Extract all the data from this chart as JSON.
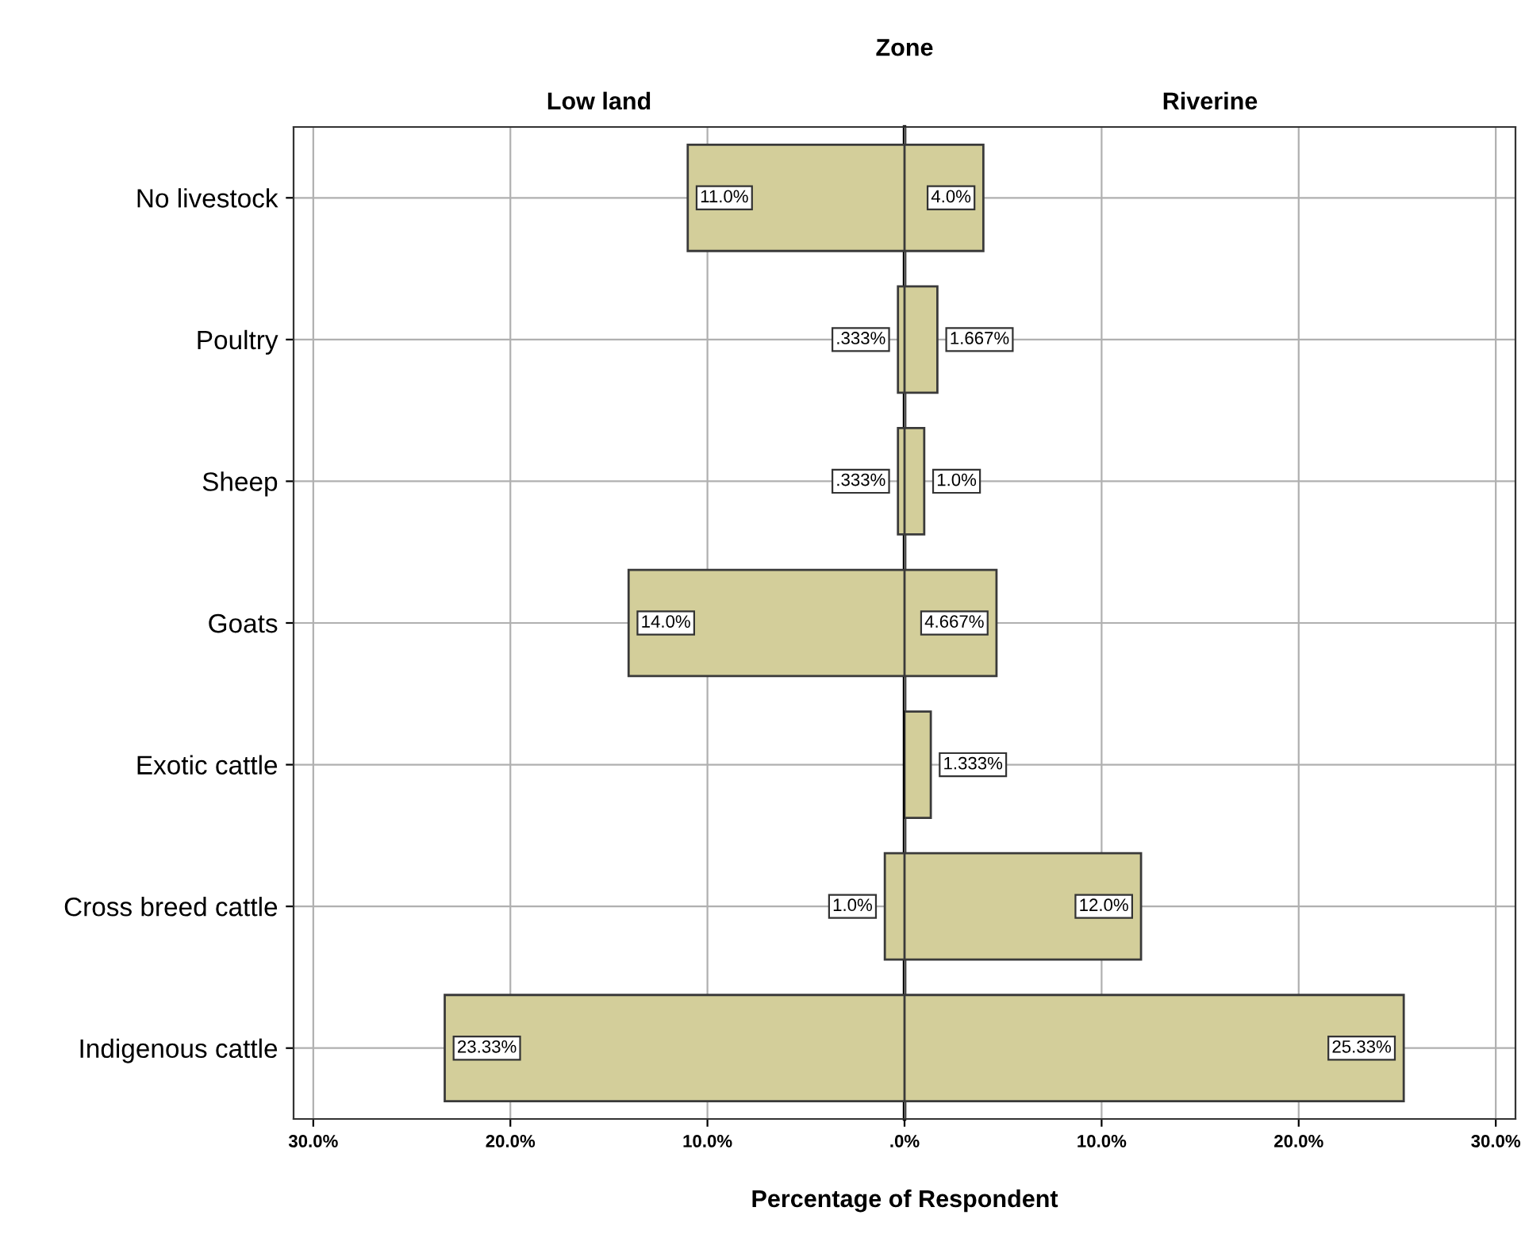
{
  "chart_data": [
    {
      "type": "bar",
      "orientation": "horizontal",
      "title": "Low land",
      "xlabel": "Percentage of Respondent",
      "annotations": [
        "Zone"
      ],
      "categories": [
        "No livestock",
        "Poultry",
        "Sheep",
        "Goats",
        "Exotic cattle",
        "Cross breed cattle",
        "Indigenous cattle"
      ],
      "values": [
        11.0,
        0.333,
        0.333,
        14.0,
        null,
        1.0,
        23.33
      ],
      "value_labels": [
        "11.0%",
        ".333%",
        ".333%",
        "14.0%",
        null,
        "1.0%",
        "23.33%"
      ],
      "color": "#d3ce9a",
      "xlim": [
        31,
        0
      ],
      "xticks": [
        {
          "value": 30,
          "label": "30.0%"
        },
        {
          "value": 20,
          "label": "20.0%"
        },
        {
          "value": 10,
          "label": "10.0%"
        }
      ],
      "grid": true
    },
    {
      "type": "bar",
      "orientation": "horizontal",
      "title": "Riverine",
      "categories": [
        null,
        null,
        null,
        null,
        null,
        null,
        null
      ],
      "values": [
        4.0,
        1.667,
        1.0,
        4.667,
        1.333,
        12.0,
        25.33
      ],
      "value_labels": [
        "4.0%",
        "1.667%",
        "1.0%",
        "4.667%",
        "1.333%",
        "12.0%",
        "25.33%"
      ],
      "color": "#d3ce9a",
      "xlim": [
        0,
        31
      ],
      "xticks": [
        {
          "value": 0,
          "label": ".0%"
        },
        {
          "value": 10,
          "label": "10.0%"
        },
        {
          "value": 20,
          "label": "20.0%"
        },
        {
          "value": 30,
          "label": "30.0%"
        }
      ],
      "grid": true,
      "tick_labels": "x"
    }
  ]
}
